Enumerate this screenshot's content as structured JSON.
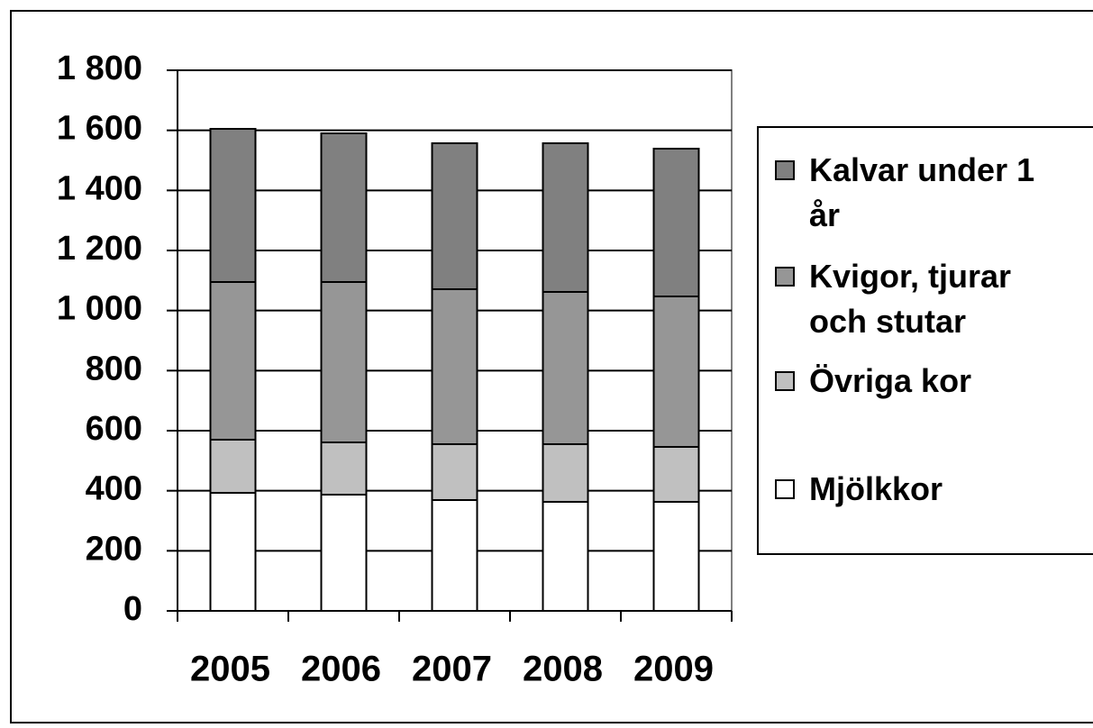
{
  "chart_data": {
    "type": "stacked_bar",
    "categories": [
      "2005",
      "2006",
      "2007",
      "2008",
      "2009"
    ],
    "series": [
      {
        "name": "Mjölkkor",
        "color": "#ffffff",
        "values": [
          393,
          387,
          369,
          363,
          363
        ]
      },
      {
        "name": "Övriga kor",
        "color": "#c0c0c0",
        "values": [
          177,
          174,
          186,
          192,
          183
        ]
      },
      {
        "name": "Kvigor, tjurar och stutar",
        "color": "#969696",
        "values": [
          525,
          534,
          516,
          507,
          501
        ]
      },
      {
        "name": "Kalvar under 1 år",
        "color": "#808080",
        "values": [
          510,
          495,
          486,
          495,
          492
        ]
      }
    ],
    "ylim": [
      0,
      1800
    ],
    "yticks": [
      0,
      200,
      400,
      600,
      800,
      {
        "value": 1000,
        "label": "1 000"
      },
      {
        "value": 1200,
        "label": "1 200"
      },
      {
        "value": 1400,
        "label": "1 400"
      },
      {
        "value": 1600,
        "label": "1 600"
      },
      {
        "value": 1800,
        "label": "1 800"
      }
    ],
    "grid": true,
    "legend": "right"
  }
}
